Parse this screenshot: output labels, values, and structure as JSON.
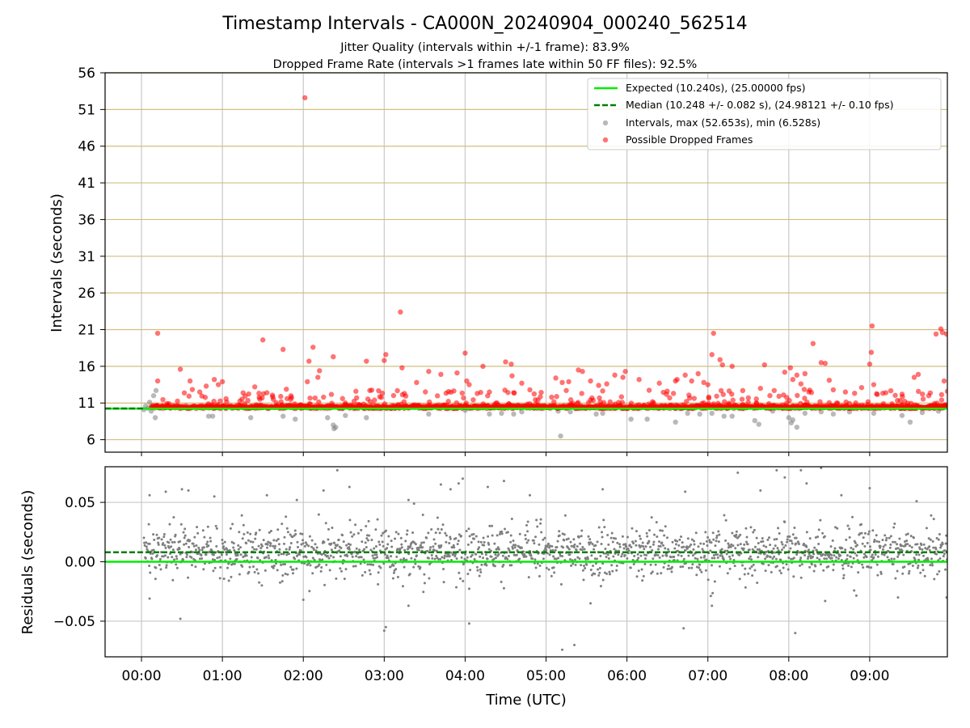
{
  "chart_data": {
    "title": "Timestamp Intervals - CA000N_20240904_000240_562514",
    "subtitle_lines": [
      "Jitter Quality (intervals within +/-1 frame): 83.9%",
      "Dropped Frame Rate (intervals >1 frames late within 50 FF files): 92.5%"
    ],
    "x_tick_labels": [
      "00:00",
      "01:00",
      "02:00",
      "03:00",
      "04:00",
      "05:00",
      "06:00",
      "07:00",
      "08:00",
      "09:00"
    ],
    "x_tick_hours": [
      0,
      1,
      2,
      3,
      4,
      5,
      6,
      7,
      8,
      9
    ],
    "xlabel": "Time (UTC)",
    "xlim_hours": [
      -0.45,
      9.96
    ],
    "grid": true,
    "intervals_panel": {
      "type": "scatter",
      "ylabel": "Intervals (seconds)",
      "ylim": [
        4.3,
        56
      ],
      "y_ticks": [
        6,
        11,
        16,
        21,
        26,
        31,
        36,
        41,
        46,
        51,
        56
      ],
      "y_tick_labels": [
        "6",
        "11",
        "16",
        "21",
        "26",
        "31",
        "36",
        "41",
        "46",
        "51",
        "56"
      ],
      "expected_value": 10.24,
      "median_value": 10.248,
      "legend_position": "upper-right",
      "legend": [
        {
          "label": "Expected (10.240s), (25.00000 fps)",
          "kind": "solid-line",
          "color": "#00ee00"
        },
        {
          "label": "Median (10.248 +/- 0.082 s), (24.98121 +/- 0.10 fps)",
          "kind": "dashed-line",
          "color": "#008000"
        },
        {
          "label": "Intervals, max (52.653s), min (6.528s)",
          "kind": "marker",
          "color": "#808080"
        },
        {
          "label": "Possible Dropped Frames",
          "kind": "marker",
          "color": "#ff0000"
        }
      ],
      "series": [
        {
          "name": "Intervals, max (52.653s), min (6.528s)",
          "color": "#808080",
          "points": [
            [
              0.03,
              10.1
            ],
            [
              0.05,
              10.6
            ],
            [
              0.08,
              10.3
            ],
            [
              0.1,
              11.1
            ],
            [
              0.12,
              9.9
            ],
            [
              0.15,
              12.0
            ],
            [
              0.17,
              9.0
            ],
            [
              0.18,
              12.7
            ],
            [
              0.2,
              10.5
            ],
            [
              0.83,
              9.2
            ],
            [
              0.88,
              9.2
            ],
            [
              1.35,
              9.0
            ],
            [
              1.75,
              9.2
            ],
            [
              1.9,
              8.8
            ],
            [
              2.3,
              9.0
            ],
            [
              2.37,
              8.0
            ],
            [
              2.38,
              7.5
            ],
            [
              2.4,
              7.7
            ],
            [
              2.52,
              9.3
            ],
            [
              2.78,
              9.0
            ],
            [
              3.55,
              9.5
            ],
            [
              4.0,
              10.0
            ],
            [
              4.3,
              9.5
            ],
            [
              4.45,
              9.6
            ],
            [
              4.6,
              9.5
            ],
            [
              4.7,
              9.8
            ],
            [
              5.15,
              9.9
            ],
            [
              5.18,
              6.5
            ],
            [
              5.3,
              9.8
            ],
            [
              5.62,
              9.5
            ],
            [
              5.7,
              9.6
            ],
            [
              6.05,
              8.8
            ],
            [
              6.25,
              8.8
            ],
            [
              6.6,
              8.4
            ],
            [
              6.75,
              9.6
            ],
            [
              6.9,
              9.5
            ],
            [
              7.05,
              9.6
            ],
            [
              7.2,
              9.2
            ],
            [
              7.3,
              9.2
            ],
            [
              7.58,
              8.6
            ],
            [
              7.63,
              8.1
            ],
            [
              7.8,
              9.9
            ],
            [
              8.0,
              9.0
            ],
            [
              8.03,
              8.3
            ],
            [
              8.05,
              8.7
            ],
            [
              8.1,
              7.7
            ],
            [
              8.2,
              9.6
            ],
            [
              8.4,
              9.8
            ],
            [
              8.55,
              9.5
            ],
            [
              8.75,
              9.8
            ],
            [
              9.05,
              9.6
            ],
            [
              9.4,
              9.3
            ],
            [
              9.5,
              8.4
            ],
            [
              9.65,
              9.7
            ],
            [
              9.85,
              9.9
            ],
            [
              9.75,
              10.6
            ]
          ]
        },
        {
          "name": "Possible Dropped Frames",
          "color": "#ff0000",
          "dense_band": [
            10.25,
            10.65
          ],
          "points": [
            [
              0.2,
              20.5
            ],
            [
              0.2,
              14.0
            ],
            [
              0.48,
              15.6
            ],
            [
              0.6,
              14.0
            ],
            [
              0.72,
              12.5
            ],
            [
              0.8,
              13.3
            ],
            [
              0.9,
              14.2
            ],
            [
              0.95,
              13.5
            ],
            [
              1.0,
              13.9
            ],
            [
              1.4,
              13.2
            ],
            [
              1.5,
              19.6
            ],
            [
              1.55,
              12.4
            ],
            [
              1.63,
              11.5
            ],
            [
              1.75,
              18.3
            ],
            [
              1.8,
              11.6
            ],
            [
              2.02,
              52.6
            ],
            [
              2.05,
              13.9
            ],
            [
              2.07,
              16.7
            ],
            [
              2.12,
              18.6
            ],
            [
              2.18,
              14.5
            ],
            [
              2.2,
              15.4
            ],
            [
              2.25,
              11.8
            ],
            [
              2.37,
              17.3
            ],
            [
              2.52,
              11.0
            ],
            [
              2.65,
              12.6
            ],
            [
              2.78,
              16.7
            ],
            [
              3.0,
              16.8
            ],
            [
              3.02,
              17.6
            ],
            [
              3.2,
              23.4
            ],
            [
              3.22,
              15.8
            ],
            [
              3.25,
              12.3
            ],
            [
              3.4,
              13.8
            ],
            [
              3.55,
              15.3
            ],
            [
              3.7,
              14.9
            ],
            [
              3.9,
              15.1
            ],
            [
              4.0,
              17.8
            ],
            [
              4.02,
              14.0
            ],
            [
              4.05,
              13.5
            ],
            [
              4.15,
              12.3
            ],
            [
              4.22,
              16.0
            ],
            [
              4.3,
              12.5
            ],
            [
              4.5,
              16.6
            ],
            [
              4.57,
              16.3
            ],
            [
              4.58,
              14.7
            ],
            [
              4.6,
              12.4
            ],
            [
              4.7,
              13.7
            ],
            [
              4.8,
              12.8
            ],
            [
              4.9,
              11.4
            ],
            [
              5.12,
              14.4
            ],
            [
              5.2,
              13.8
            ],
            [
              5.25,
              12.7
            ],
            [
              5.28,
              13.9
            ],
            [
              5.4,
              15.5
            ],
            [
              5.45,
              15.3
            ],
            [
              5.55,
              14.0
            ],
            [
              5.65,
              13.4
            ],
            [
              5.75,
              13.6
            ],
            [
              5.85,
              14.8
            ],
            [
              5.95,
              14.5
            ],
            [
              5.98,
              15.3
            ],
            [
              6.15,
              14.2
            ],
            [
              6.4,
              13.7
            ],
            [
              6.6,
              14.0
            ],
            [
              6.62,
              14.2
            ],
            [
              6.72,
              14.8
            ],
            [
              6.8,
              14.0
            ],
            [
              6.88,
              15.0
            ],
            [
              6.95,
              13.8
            ],
            [
              7.0,
              13.5
            ],
            [
              7.05,
              17.6
            ],
            [
              7.07,
              20.5
            ],
            [
              7.15,
              16.9
            ],
            [
              7.18,
              16.2
            ],
            [
              7.3,
              16.0
            ],
            [
              7.5,
              11.7
            ],
            [
              7.65,
              13.0
            ],
            [
              7.7,
              16.2
            ],
            [
              7.82,
              12.7
            ],
            [
              7.95,
              15.2
            ],
            [
              8.02,
              15.8
            ],
            [
              8.05,
              14.2
            ],
            [
              8.1,
              14.8
            ],
            [
              8.15,
              13.6
            ],
            [
              8.2,
              15.0
            ],
            [
              8.3,
              19.1
            ],
            [
              8.4,
              16.5
            ],
            [
              8.45,
              16.4
            ],
            [
              8.5,
              14.1
            ],
            [
              8.55,
              12.8
            ],
            [
              8.7,
              12.5
            ],
            [
              8.9,
              13.1
            ],
            [
              9.0,
              16.3
            ],
            [
              9.02,
              17.9
            ],
            [
              9.03,
              21.5
            ],
            [
              9.05,
              13.5
            ],
            [
              9.2,
              12.4
            ],
            [
              9.4,
              12.2
            ],
            [
              9.55,
              14.5
            ],
            [
              9.6,
              14.9
            ],
            [
              9.82,
              20.4
            ],
            [
              9.88,
              21.1
            ],
            [
              9.9,
              20.6
            ],
            [
              9.92,
              14.0
            ],
            [
              9.95,
              20.4
            ],
            [
              9.96,
              12.6
            ]
          ]
        }
      ]
    },
    "residuals_panel": {
      "type": "scatter",
      "ylabel": "Residuals (seconds)",
      "ylim": [
        -0.08,
        0.08
      ],
      "y_ticks": [
        0.05,
        0.0,
        -0.05
      ],
      "y_tick_labels": [
        "0.05",
        "0.00",
        "−0.05"
      ],
      "expected_value": 0.0,
      "median_value": 0.008,
      "color": "#7f7f7f",
      "x_range_hours": [
        0.03,
        9.96
      ],
      "typical_spread": 0.025,
      "points": [
        [
          0.1,
          0.056
        ],
        [
          0.3,
          0.059
        ],
        [
          0.5,
          0.061
        ],
        [
          0.58,
          0.06
        ],
        [
          0.9,
          0.055
        ],
        [
          1.55,
          0.056
        ],
        [
          1.92,
          0.052
        ],
        [
          2.25,
          0.06
        ],
        [
          2.57,
          0.063
        ],
        [
          3.3,
          0.052
        ],
        [
          3.7,
          0.065
        ],
        [
          3.82,
          0.061
        ],
        [
          3.92,
          0.066
        ],
        [
          3.97,
          0.07
        ],
        [
          4.28,
          0.063
        ],
        [
          4.48,
          0.068
        ],
        [
          4.8,
          0.056
        ],
        [
          5.7,
          0.061
        ],
        [
          6.72,
          0.059
        ],
        [
          7.37,
          0.075
        ],
        [
          7.65,
          0.06
        ],
        [
          7.85,
          0.077
        ],
        [
          8.15,
          0.077
        ],
        [
          8.22,
          0.066
        ],
        [
          8.4,
          0.079
        ],
        [
          8.65,
          0.056
        ],
        [
          9.0,
          0.062
        ],
        [
          9.58,
          0.051
        ],
        [
          2.42,
          0.077
        ],
        [
          7.95,
          0.071
        ],
        [
          3.02,
          -0.055
        ],
        [
          3.0,
          -0.058
        ],
        [
          4.05,
          -0.052
        ],
        [
          5.2,
          -0.074
        ],
        [
          5.35,
          -0.07
        ],
        [
          6.7,
          -0.056
        ],
        [
          8.08,
          -0.06
        ],
        [
          0.48,
          -0.048
        ],
        [
          9.95,
          -0.03
        ],
        [
          2.0,
          -0.032
        ],
        [
          0.1,
          -0.031
        ],
        [
          3.3,
          -0.037
        ],
        [
          5.55,
          -0.035
        ],
        [
          7.05,
          -0.037
        ],
        [
          8.45,
          -0.033
        ],
        [
          9.35,
          -0.03
        ]
      ]
    }
  }
}
